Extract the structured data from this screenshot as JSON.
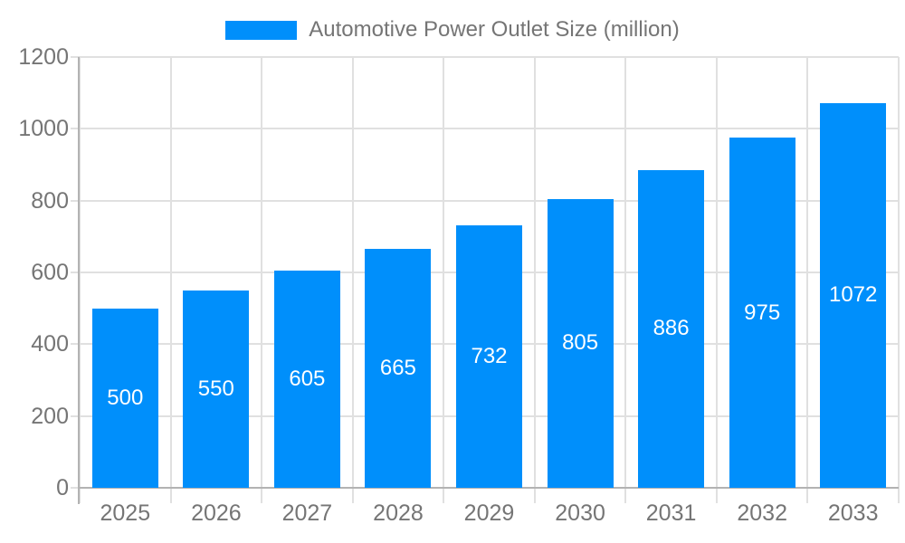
{
  "legend": {
    "label": "Automotive Power Outlet Size (million)"
  },
  "chart_data": {
    "type": "bar",
    "title": "Automotive Power Outlet Size (million)",
    "categories": [
      "2025",
      "2026",
      "2027",
      "2028",
      "2029",
      "2030",
      "2031",
      "2032",
      "2033"
    ],
    "values": [
      500,
      550,
      605,
      665,
      732,
      805,
      886,
      975,
      1072
    ],
    "xlabel": "",
    "ylabel": "",
    "ylim": [
      0,
      1200
    ],
    "yticks": [
      0,
      200,
      400,
      600,
      800,
      1000,
      1200
    ],
    "grid": true,
    "legend_position": "top-center",
    "bar_labels_inside": true,
    "colors": {
      "bar": "#008FFB",
      "bar_label": "#ffffff",
      "axis_text": "#757575",
      "gridline": "#e0e0e0",
      "axis_line": "#b3b3b3",
      "background": "#ffffff"
    }
  }
}
